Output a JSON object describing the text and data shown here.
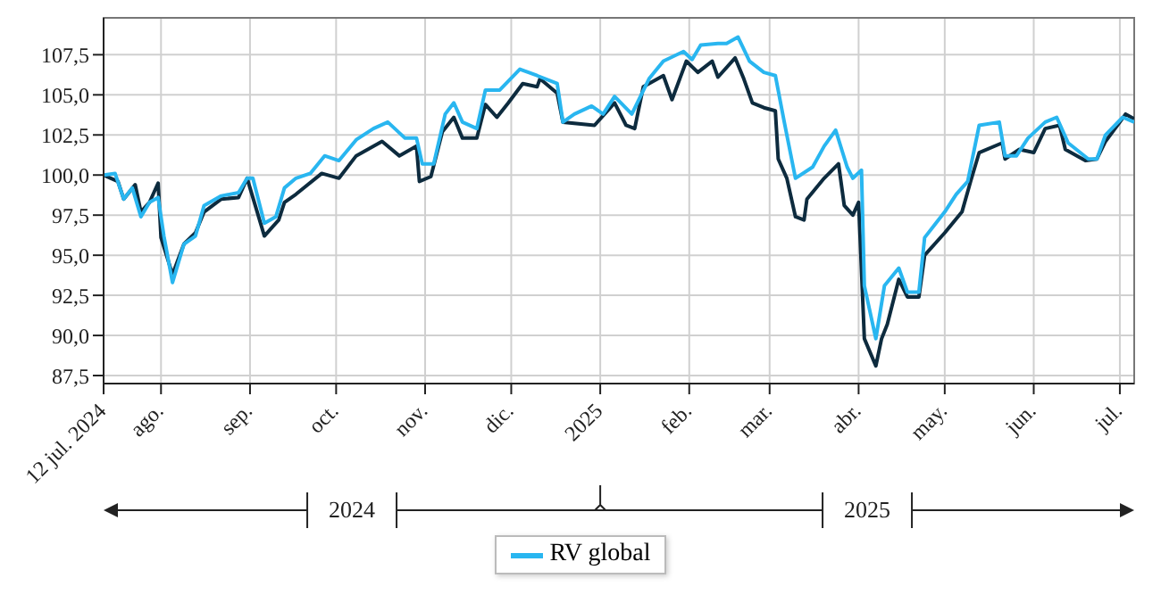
{
  "chart_data": {
    "type": "line",
    "xlim": [
      "2024-07-12",
      "2025-07-06"
    ],
    "xticks": [
      {
        "value": "2024-07-12",
        "label": "12 jul. 2024"
      },
      {
        "value": "2024-08-01",
        "label": "ago."
      },
      {
        "value": "2024-09-01",
        "label": "sep."
      },
      {
        "value": "2024-10-01",
        "label": "oct."
      },
      {
        "value": "2024-11-01",
        "label": "nov."
      },
      {
        "value": "2024-12-01",
        "label": "dic."
      },
      {
        "value": "2025-01-01",
        "label": "2025"
      },
      {
        "value": "2025-02-01",
        "label": "feb."
      },
      {
        "value": "2025-03-01",
        "label": "mar."
      },
      {
        "value": "2025-04-01",
        "label": "abr."
      },
      {
        "value": "2025-05-01",
        "label": "may."
      },
      {
        "value": "2025-06-01",
        "label": "jun."
      },
      {
        "value": "2025-07-01",
        "label": "jul."
      }
    ],
    "ylim": [
      87,
      109.8
    ],
    "yticks": [
      {
        "value": 87.5,
        "label": "87,5"
      },
      {
        "value": 90,
        "label": "90,0"
      },
      {
        "value": 92.5,
        "label": "92,5"
      },
      {
        "value": 95,
        "label": "95,0"
      },
      {
        "value": 97.5,
        "label": "97,5"
      },
      {
        "value": 100,
        "label": "100,0"
      },
      {
        "value": 102.5,
        "label": "102,5"
      },
      {
        "value": 105,
        "label": "105,0"
      },
      {
        "value": 107.5,
        "label": "107,5"
      }
    ],
    "grid": true,
    "legend": "bottom",
    "marker": "none",
    "line_style": "solid",
    "annotations": [
      "2024",
      "2025"
    ],
    "series": [
      {
        "color": "#0d2b3e",
        "x": [
          "2024-07-12",
          "2024-07-17",
          "2024-07-19",
          "2024-07-23",
          "2024-07-25",
          "2024-07-28",
          "2024-07-31",
          "2024-08-01",
          "2024-08-05",
          "2024-08-09",
          "2024-08-13",
          "2024-08-16",
          "2024-08-22",
          "2024-08-28",
          "2024-08-31",
          "2024-09-06",
          "2024-09-11",
          "2024-09-13",
          "2024-09-17",
          "2024-09-26",
          "2024-10-02",
          "2024-10-08",
          "2024-10-17",
          "2024-10-23",
          "2024-10-29",
          "2024-10-30",
          "2024-11-03",
          "2024-11-07",
          "2024-11-11",
          "2024-11-14",
          "2024-11-19",
          "2024-11-22",
          "2024-11-26",
          "2024-11-30",
          "2024-12-05",
          "2024-12-10",
          "2024-12-11",
          "2024-12-17",
          "2024-12-19",
          "2024-12-30",
          "2025-01-06",
          "2025-01-10",
          "2025-01-13",
          "2025-01-16",
          "2025-01-23",
          "2025-01-26",
          "2025-01-31",
          "2025-02-04",
          "2025-02-09",
          "2025-02-11",
          "2025-02-17",
          "2025-02-20",
          "2025-02-23",
          "2025-02-27",
          "2025-03-03",
          "2025-03-04",
          "2025-03-07",
          "2025-03-10",
          "2025-03-13",
          "2025-03-14",
          "2025-03-20",
          "2025-03-25",
          "2025-03-27",
          "2025-03-30",
          "2025-04-01",
          "2025-04-03",
          "2025-04-07",
          "2025-04-09",
          "2025-04-11",
          "2025-04-15",
          "2025-04-18",
          "2025-04-22",
          "2025-04-24",
          "2025-05-01",
          "2025-05-07",
          "2025-05-10",
          "2025-05-13",
          "2025-05-21",
          "2025-05-22",
          "2025-05-27",
          "2025-06-01",
          "2025-06-05",
          "2025-06-10",
          "2025-06-12",
          "2025-06-19",
          "2025-06-23",
          "2025-06-26",
          "2025-07-01",
          "2025-07-03",
          "2025-07-06"
        ],
        "values": [
          100.0,
          99.6,
          98.5,
          99.4,
          97.7,
          98.3,
          99.5,
          96.1,
          93.8,
          95.7,
          96.4,
          97.7,
          98.5,
          98.6,
          99.8,
          96.2,
          97.2,
          98.3,
          98.8,
          100.1,
          99.8,
          101.2,
          102.1,
          101.2,
          101.8,
          99.6,
          99.9,
          102.7,
          103.6,
          102.3,
          102.3,
          104.4,
          103.6,
          104.5,
          105.7,
          105.5,
          106.0,
          105.1,
          103.3,
          103.1,
          104.5,
          103.1,
          102.9,
          105.5,
          106.2,
          104.7,
          107.1,
          106.4,
          107.1,
          106.1,
          107.3,
          106.0,
          104.5,
          104.2,
          104.0,
          101.0,
          99.8,
          97.4,
          97.2,
          98.5,
          99.8,
          100.7,
          98.1,
          97.5,
          98.3,
          89.8,
          88.1,
          89.8,
          90.7,
          93.5,
          92.4,
          92.4,
          95.0,
          96.4,
          97.7,
          99.6,
          101.4,
          102.0,
          101.0,
          101.6,
          101.4,
          102.9,
          103.1,
          101.6,
          100.9,
          101.0,
          102.1,
          103.3,
          103.8,
          103.5
        ]
      },
      {
        "name": "RV global",
        "color": "#29b6f0",
        "x": [
          "2024-07-12",
          "2024-07-16",
          "2024-07-19",
          "2024-07-22",
          "2024-07-25",
          "2024-07-28",
          "2024-07-31",
          "2024-08-02",
          "2024-08-05",
          "2024-08-09",
          "2024-08-13",
          "2024-08-16",
          "2024-08-22",
          "2024-08-28",
          "2024-08-31",
          "2024-09-02",
          "2024-09-06",
          "2024-09-10",
          "2024-09-13",
          "2024-09-17",
          "2024-09-22",
          "2024-09-27",
          "2024-10-02",
          "2024-10-08",
          "2024-10-14",
          "2024-10-19",
          "2024-10-25",
          "2024-10-29",
          "2024-10-31",
          "2024-11-04",
          "2024-11-08",
          "2024-11-11",
          "2024-11-14",
          "2024-11-19",
          "2024-11-22",
          "2024-11-27",
          "2024-12-04",
          "2024-12-10",
          "2024-12-17",
          "2024-12-19",
          "2024-12-23",
          "2024-12-29",
          "2025-01-02",
          "2025-01-06",
          "2025-01-12",
          "2025-01-18",
          "2025-01-23",
          "2025-01-30",
          "2025-02-02",
          "2025-02-05",
          "2025-02-11",
          "2025-02-14",
          "2025-02-18",
          "2025-02-22",
          "2025-02-27",
          "2025-03-03",
          "2025-03-06",
          "2025-03-10",
          "2025-03-16",
          "2025-03-20",
          "2025-03-24",
          "2025-03-28",
          "2025-03-30",
          "2025-04-02",
          "2025-04-03",
          "2025-04-07",
          "2025-04-10",
          "2025-04-15",
          "2025-04-18",
          "2025-04-22",
          "2025-04-24",
          "2025-05-01",
          "2025-05-05",
          "2025-05-09",
          "2025-05-13",
          "2025-05-20",
          "2025-05-22",
          "2025-05-26",
          "2025-05-30",
          "2025-06-05",
          "2025-06-09",
          "2025-06-13",
          "2025-06-20",
          "2025-06-23",
          "2025-06-26",
          "2025-07-02",
          "2025-07-06"
        ],
        "values": [
          100.0,
          100.1,
          98.5,
          99.2,
          97.4,
          98.3,
          98.6,
          96.2,
          93.3,
          95.7,
          96.2,
          98.1,
          98.7,
          98.9,
          99.8,
          99.8,
          97.0,
          97.4,
          99.2,
          99.8,
          100.1,
          101.2,
          100.9,
          102.2,
          102.9,
          103.3,
          102.3,
          102.3,
          100.7,
          100.7,
          103.8,
          104.5,
          103.3,
          102.9,
          105.3,
          105.3,
          106.6,
          106.2,
          105.7,
          103.3,
          103.8,
          104.3,
          103.8,
          104.9,
          103.8,
          106.0,
          107.1,
          107.7,
          107.2,
          108.1,
          108.2,
          108.2,
          108.6,
          107.1,
          106.4,
          106.2,
          103.4,
          99.8,
          100.5,
          101.8,
          102.8,
          100.5,
          99.8,
          100.3,
          93.1,
          89.8,
          93.1,
          94.2,
          92.7,
          92.7,
          96.1,
          97.7,
          98.8,
          99.6,
          103.1,
          103.3,
          101.2,
          101.2,
          102.3,
          103.3,
          103.6,
          102.0,
          101.0,
          101.0,
          102.5,
          103.6,
          103.3
        ]
      }
    ]
  }
}
